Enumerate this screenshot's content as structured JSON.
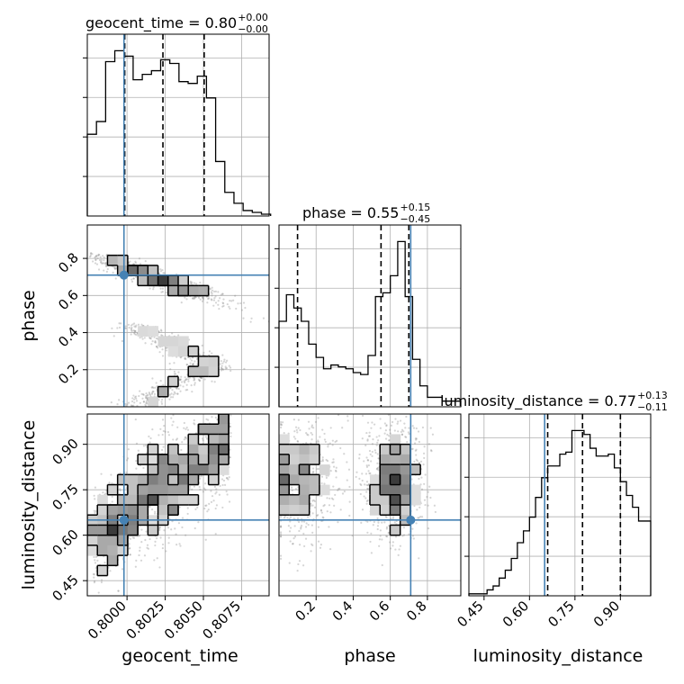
{
  "chart_data": {
    "type": "corner",
    "parameters": [
      "geocent_time",
      "phase",
      "luminosity_distance"
    ],
    "truths": {
      "geocent_time": 0.7998,
      "phase": 0.71,
      "luminosity_distance": 0.65
    },
    "titles": [
      {
        "param": "geocent_time",
        "text": "geocent_time = 0.80",
        "plus": "+0.00",
        "minus": "−0.00"
      },
      {
        "param": "phase",
        "text": "phase = 0.55",
        "plus": "+0.15",
        "minus": "−0.45"
      },
      {
        "param": "luminosity_distance",
        "text": "luminosity_distance = 0.77",
        "plus": "+0.13",
        "minus": "−0.11"
      }
    ],
    "axes": {
      "geocent_time": {
        "lim": [
          0.7974,
          0.8093
        ],
        "ticks": [
          0.8,
          0.8025,
          0.805,
          0.8075
        ],
        "tick_labels": [
          "0.8000",
          "0.8025",
          "0.8050",
          "0.8075"
        ],
        "label": "geocent_time"
      },
      "phase": {
        "lim": [
          0.0,
          0.98
        ],
        "ticks": [
          0.2,
          0.4,
          0.6,
          0.8
        ],
        "tick_labels": [
          "0.2",
          "0.4",
          "0.6",
          "0.8"
        ],
        "label": "phase"
      },
      "luminosity_distance": {
        "lim": [
          0.4,
          1.0
        ],
        "ticks": [
          0.45,
          0.6,
          0.75,
          0.9
        ],
        "tick_labels": [
          "0.45",
          "0.60",
          "0.75",
          "0.90"
        ],
        "label": "luminosity_distance"
      }
    },
    "histograms": [
      {
        "param": "geocent_time",
        "quantiles": [
          0.79985,
          0.80235,
          0.80505
        ],
        "bins": [
          0.7974,
          0.798,
          0.7986,
          0.7992,
          0.7998,
          0.8004,
          0.801,
          0.8016,
          0.8022,
          0.8028,
          0.8034,
          0.804,
          0.8046,
          0.8052,
          0.8058,
          0.8064,
          0.807,
          0.8076,
          0.8082,
          0.8088,
          0.8094
        ],
        "counts": [
          45,
          52,
          85,
          91,
          88,
          75,
          78,
          80,
          86,
          84,
          74,
          73,
          77,
          65,
          30,
          13,
          7,
          3,
          2,
          1
        ]
      },
      {
        "param": "phase",
        "quantiles": [
          0.1,
          0.55,
          0.7
        ],
        "bins": [
          0.0,
          0.04,
          0.08,
          0.12,
          0.16,
          0.2,
          0.24,
          0.28,
          0.32,
          0.36,
          0.4,
          0.44,
          0.48,
          0.52,
          0.56,
          0.6,
          0.64,
          0.68,
          0.72,
          0.76,
          0.8,
          0.84,
          0.88,
          0.92,
          0.98
        ],
        "counts": [
          45,
          59,
          52,
          45,
          33,
          26,
          20,
          22,
          21,
          20,
          18,
          17,
          27,
          58,
          60,
          69,
          87,
          58,
          25,
          11,
          5,
          5,
          3,
          3
        ]
      },
      {
        "param": "luminosity_distance",
        "quantiles": [
          0.66,
          0.775,
          0.9
        ],
        "bins": [
          0.4,
          0.42,
          0.44,
          0.46,
          0.48,
          0.5,
          0.52,
          0.54,
          0.56,
          0.58,
          0.6,
          0.62,
          0.64,
          0.66,
          0.68,
          0.7,
          0.72,
          0.74,
          0.76,
          0.78,
          0.8,
          0.82,
          0.84,
          0.86,
          0.88,
          0.9,
          0.92,
          0.94,
          0.96,
          0.98,
          1.0
        ],
        "counts": [
          1,
          1,
          1,
          3,
          5,
          9,
          13,
          19,
          27,
          33,
          40,
          50,
          60,
          66,
          66,
          72,
          73,
          84,
          84,
          82,
          75,
          71,
          71,
          72,
          65,
          58,
          51,
          45,
          38,
          38
        ]
      }
    ],
    "grid": true
  }
}
